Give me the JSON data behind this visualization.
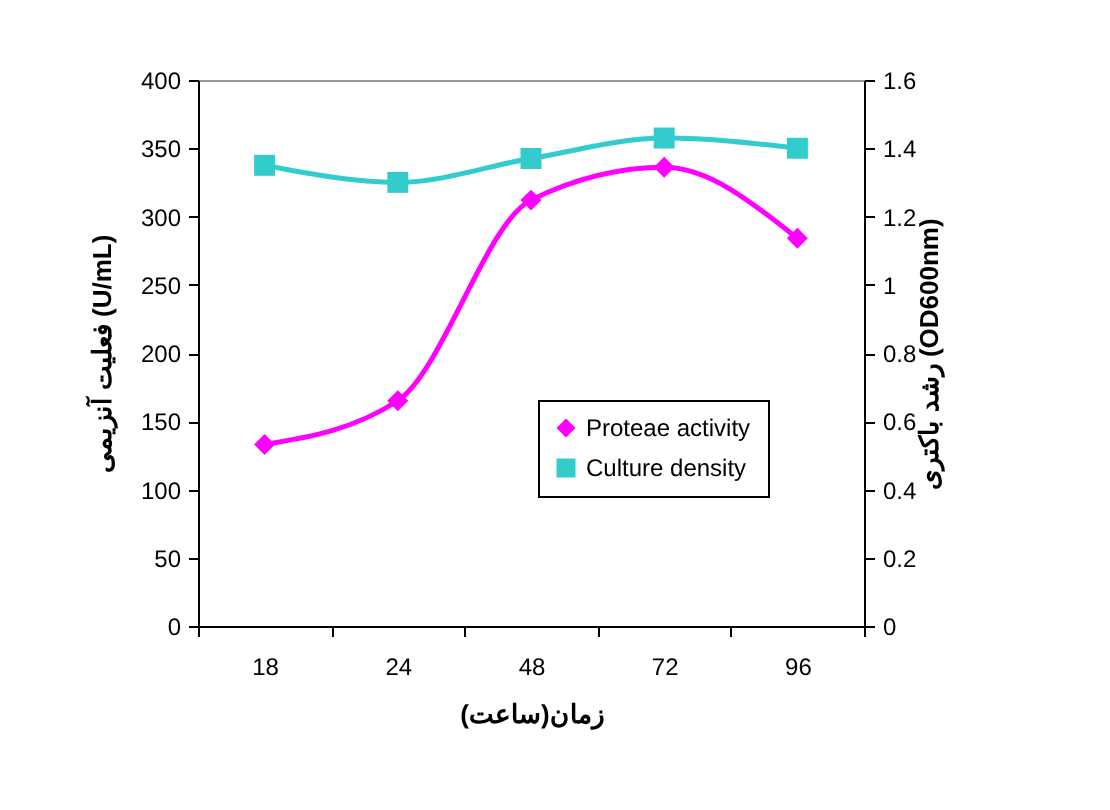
{
  "chart_data": {
    "type": "line",
    "xlabel": "زمان(ساعت)",
    "ylabel": "فعلیت آنزیمی (U/mL)",
    "y2label": "رشد باکتری (OD600nm)",
    "categories": [
      "18",
      "24",
      "48",
      "72",
      "96"
    ],
    "series": [
      {
        "name": "Proteae activity",
        "color": "#ff00ff",
        "marker": "diamond",
        "values": [
          133,
          165,
          312,
          336,
          284
        ]
      },
      {
        "name": "Culture density",
        "color": "#33cccc",
        "marker": "square",
        "axis": "y2",
        "values": [
          1.35,
          1.3,
          1.37,
          1.43,
          1.4
        ]
      }
    ],
    "ylim": [
      0,
      400
    ],
    "yticks": [
      0,
      50,
      100,
      150,
      200,
      250,
      300,
      350,
      400
    ],
    "y2lim": [
      0,
      1.6
    ],
    "y2ticks": [
      0,
      0.2,
      0.4,
      0.6,
      0.8,
      1,
      1.2,
      1.4,
      1.6
    ],
    "grid": false,
    "legend": "right"
  }
}
